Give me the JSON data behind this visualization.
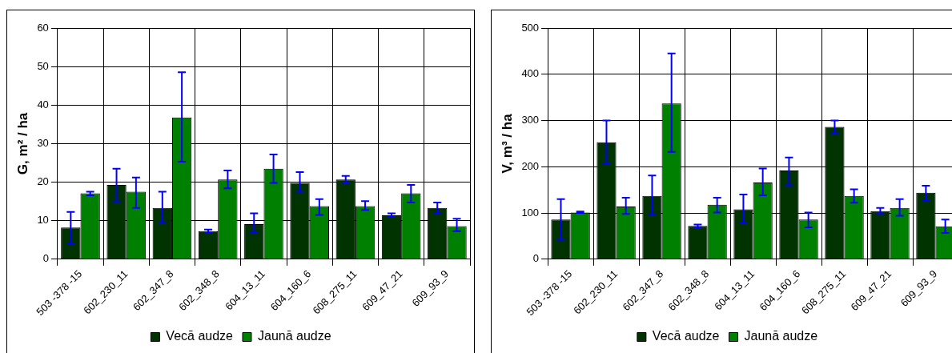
{
  "chart_data": [
    {
      "type": "bar",
      "ylabel": "G, m² / ha",
      "categories": [
        "503 -378 -15",
        "602_230_11",
        "602_347_8",
        "602_348_8",
        "604_13_11",
        "604_160_6",
        "608_275_11",
        "609_47_21",
        "609_93_9"
      ],
      "series": [
        {
          "name": "Vecā audze",
          "color": "#003300",
          "values": [
            8.2,
            19.3,
            13.3,
            7.3,
            9.1,
            19.8,
            20.7,
            11.4,
            13.3
          ],
          "errors": [
            [
              4,
              12.3
            ],
            [
              15,
              23.5
            ],
            [
              9.6,
              17.5
            ],
            [
              6.8,
              7.7
            ],
            [
              6.8,
              11.9
            ],
            [
              17.5,
              22.6
            ],
            [
              19.8,
              21.6
            ],
            [
              11,
              11.9
            ],
            [
              11.9,
              14.7
            ]
          ]
        },
        {
          "name": "Jaunā audze",
          "color": "#008000",
          "values": [
            17.1,
            17.5,
            36.8,
            20.7,
            23.5,
            13.8,
            13.8,
            17.1,
            8.6
          ],
          "errors": [
            [
              16.6,
              17.5
            ],
            [
              13.3,
              21.2
            ],
            [
              25.3,
              48.5
            ],
            [
              18.4,
              23
            ],
            [
              19.8,
              27.2
            ],
            [
              11.5,
              15.6
            ],
            [
              12.8,
              15.1
            ],
            [
              14.7,
              19.3
            ],
            [
              7.3,
              10.5
            ]
          ]
        }
      ],
      "ylim": [
        0,
        60
      ],
      "yticks": [
        0,
        10,
        20,
        30,
        40,
        50,
        60
      ],
      "grid": true,
      "legend": "bottom"
    },
    {
      "type": "bar",
      "ylabel": "V, m³ / ha",
      "categories": [
        "503 -378 -15",
        "602_230_11",
        "602_347_8",
        "602_348_8",
        "604_13_11",
        "604_160_6",
        "608_275_11",
        "609_47_21",
        "609_93_9"
      ],
      "series": [
        {
          "name": "Vecā audze",
          "color": "#003300",
          "values": [
            86,
            253,
            137,
            72,
            108,
            192,
            286,
            104,
            144
          ],
          "errors": [
            [
              42,
              130
            ],
            [
              206,
              300
            ],
            [
              97,
              181
            ],
            [
              68,
              75
            ],
            [
              79,
              140
            ],
            [
              160,
              220
            ],
            [
              272,
              300
            ],
            [
              98,
              111
            ],
            [
              126,
              159
            ]
          ]
        },
        {
          "name": "Jaunā audze",
          "color": "#008000",
          "values": [
            101,
            114,
            337,
            118,
            166,
            86,
            137,
            111,
            71
          ],
          "errors": [
            [
              100,
              103
            ],
            [
              98,
              133
            ],
            [
              232,
              445
            ],
            [
              101,
              133
            ],
            [
              138,
              196
            ],
            [
              69,
              101
            ],
            [
              122,
              151
            ],
            [
              94,
              130
            ],
            [
              57,
              86
            ]
          ]
        }
      ],
      "ylim": [
        0,
        500
      ],
      "yticks": [
        0,
        100,
        200,
        300,
        400,
        500
      ],
      "grid": true,
      "legend": "bottom"
    }
  ]
}
